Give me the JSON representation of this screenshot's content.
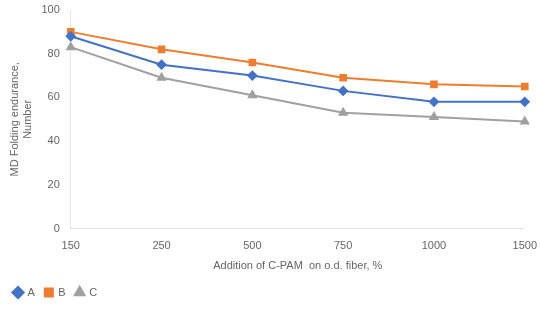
{
  "chart_data": {
    "type": "line",
    "xlabel": "Addition of C-PAM  on o.d. fiber, %",
    "ylabel": "MD Folding endurance,\nNumber",
    "categories": [
      "150",
      "250",
      "500",
      "750",
      "1000",
      "1500"
    ],
    "series": [
      {
        "name": "A",
        "color": "#4472C4",
        "marker": "diamond",
        "values": [
          88,
          75,
          70,
          63,
          58,
          58
        ]
      },
      {
        "name": "B",
        "color": "#ED7D31",
        "marker": "square",
        "values": [
          90,
          82,
          76,
          69,
          66,
          65
        ]
      },
      {
        "name": "C",
        "color": "#A0A0A0",
        "marker": "triangle",
        "values": [
          83,
          69,
          61,
          53,
          51,
          49
        ]
      }
    ],
    "ylim": [
      0,
      100
    ],
    "yticks": [
      0,
      20,
      40,
      60,
      80,
      100
    ],
    "grid": false,
    "legend": "lower left"
  }
}
